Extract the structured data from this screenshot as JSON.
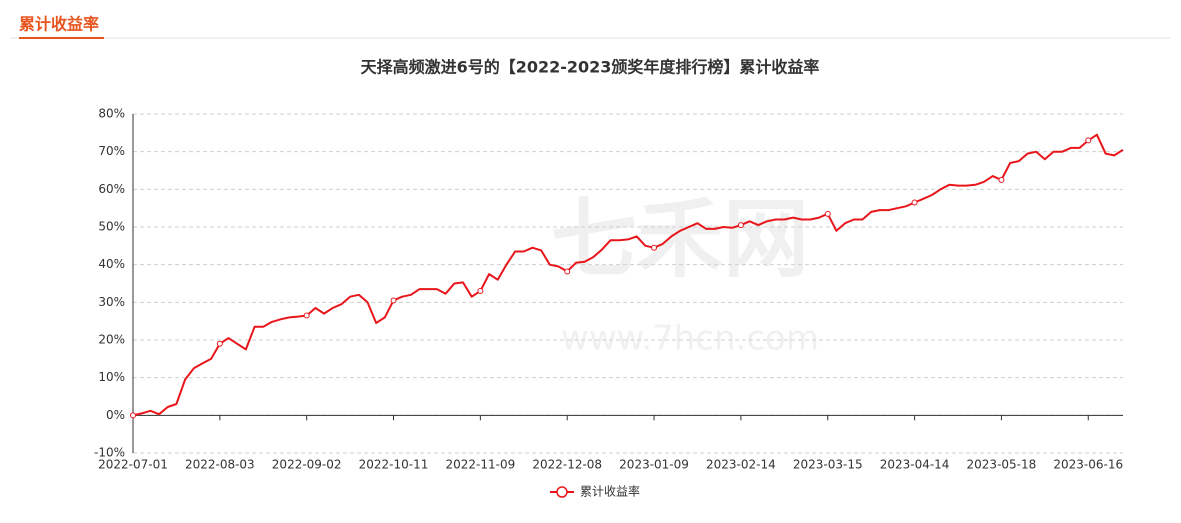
{
  "header": {
    "title": "累计收益率"
  },
  "watermark": {
    "logo": "七禾网",
    "url": "www.7hcn.com"
  },
  "chart_data": {
    "type": "line",
    "title": "天择高频激进6号的【2022-2023颁奖年度排行榜】累计收益率",
    "categories": [
      "2022-07-01",
      null,
      null,
      null,
      null,
      null,
      null,
      null,
      null,
      null,
      "2022-08-03",
      null,
      null,
      null,
      null,
      null,
      null,
      null,
      null,
      null,
      "2022-09-02",
      null,
      null,
      null,
      null,
      null,
      null,
      null,
      null,
      null,
      "2022-10-11",
      null,
      null,
      null,
      null,
      null,
      null,
      null,
      null,
      null,
      "2022-11-09",
      null,
      null,
      null,
      null,
      null,
      null,
      null,
      null,
      null,
      "2022-12-08",
      null,
      null,
      null,
      null,
      null,
      null,
      null,
      null,
      null,
      "2023-01-09",
      null,
      null,
      null,
      null,
      null,
      null,
      null,
      null,
      null,
      "2023-02-14",
      null,
      null,
      null,
      null,
      null,
      null,
      null,
      null,
      null,
      "2023-03-15",
      null,
      null,
      null,
      null,
      null,
      null,
      null,
      null,
      null,
      "2023-04-14",
      null,
      null,
      null,
      null,
      null,
      null,
      null,
      null,
      null,
      "2023-05-18",
      null,
      null,
      null,
      null,
      null,
      null,
      null,
      null,
      null,
      "2023-06-16",
      null,
      null,
      null,
      null
    ],
    "series": [
      {
        "name": "累计收益率",
        "color": "#e8161b",
        "values": [
          0,
          0.5,
          1.2,
          0.3,
          2.2,
          3,
          9.5,
          12.5,
          13.8,
          15,
          19,
          20.5,
          19,
          17.5,
          23.5,
          23.5,
          24.8,
          25.5,
          26,
          26.2,
          26.5,
          28.5,
          27,
          28.5,
          29.5,
          31.5,
          32,
          30,
          24.5,
          26,
          30.5,
          31.5,
          32,
          33.5,
          33.5,
          33.5,
          32.3,
          35,
          35.3,
          31.5,
          33,
          37.5,
          36,
          40,
          43.5,
          43.5,
          44.5,
          43.8,
          40,
          39.5,
          38.2,
          40.5,
          40.8,
          42,
          44,
          46.5,
          46.5,
          46.7,
          47.5,
          45,
          44.5,
          45.5,
          47.5,
          49,
          50,
          51,
          49.5,
          49.5,
          50,
          49.8,
          50.5,
          51.5,
          50.5,
          51.5,
          52,
          52,
          52.5,
          52,
          52,
          52.5,
          53.5,
          49,
          51,
          52,
          52,
          54,
          54.5,
          54.5,
          55,
          55.5,
          56.5,
          57.5,
          58.5,
          60,
          61.2,
          61,
          61,
          61.2,
          62,
          63.5,
          62.5,
          67,
          67.5,
          69.5,
          70,
          68,
          70,
          70,
          71,
          71,
          73,
          74.5,
          69.5,
          69,
          70.5
        ]
      }
    ],
    "ylim": [
      -10,
      80
    ],
    "yticks": [
      {
        "value": -10,
        "label": "-10%"
      },
      {
        "value": 0,
        "label": "0%"
      },
      {
        "value": 10,
        "label": "10%"
      },
      {
        "value": 20,
        "label": "20%"
      },
      {
        "value": 30,
        "label": "30%"
      },
      {
        "value": 40,
        "label": "40%"
      },
      {
        "value": 50,
        "label": "50%"
      },
      {
        "value": 60,
        "label": "60%"
      },
      {
        "value": 70,
        "label": "70%"
      },
      {
        "value": 80,
        "label": "80%"
      }
    ],
    "grid": true,
    "legend": "bottom"
  }
}
